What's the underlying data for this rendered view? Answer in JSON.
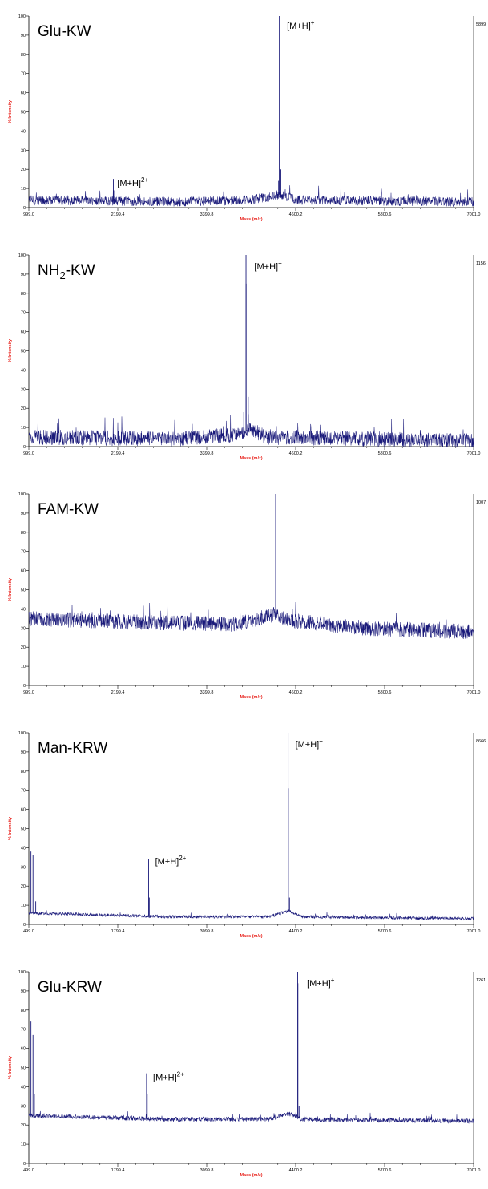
{
  "chart_data": [
    {
      "type": "line",
      "sample_label": "Glu-KW",
      "xlabel": "Mass (m/z)",
      "ylabel": "% Intensity",
      "max_intensity_label": "5899",
      "xlim": [
        999.0,
        7001.0
      ],
      "ylim": [
        0,
        100
      ],
      "x_ticks": [
        "999.0",
        "2199.4",
        "3399.8",
        "4600.2",
        "5800.6",
        "7001.0"
      ],
      "y_ticks": [
        "0",
        "10",
        "20",
        "30",
        "40",
        "50",
        "60",
        "70",
        "80",
        "90",
        "100"
      ],
      "color": "#1a1a7a",
      "baseline": {
        "points": [
          [
            999.0,
            4
          ],
          [
            3000,
            3
          ],
          [
            4000,
            4
          ],
          [
            4400,
            7
          ],
          [
            4600,
            4
          ],
          [
            7001.0,
            3
          ]
        ],
        "noise": 2.5
      },
      "peaks": [
        {
          "x": 2140,
          "y": 15
        },
        {
          "x": 2145,
          "y": 9
        },
        {
          "x": 4380,
          "y": 100
        },
        {
          "x": 4382,
          "y": 45
        },
        {
          "x": 4400,
          "y": 20
        },
        {
          "x": 4370,
          "y": 14
        }
      ],
      "annotations": [
        {
          "x": 2160,
          "y": 16,
          "text": "[M+H]",
          "sup": "2+"
        },
        {
          "x": 4450,
          "y": 98,
          "text": "[M+H]",
          "sup": "+"
        }
      ]
    },
    {
      "type": "line",
      "sample_label": "NH",
      "sample_label_sub": "2",
      "sample_label_suffix": "-KW",
      "xlabel": "Mass (m/z)",
      "ylabel": "% Intensity",
      "max_intensity_label": "1156",
      "xlim": [
        999.0,
        7001.0
      ],
      "ylim": [
        0,
        100
      ],
      "x_ticks": [
        "999.0",
        "2199.4",
        "3399.8",
        "4600.2",
        "5800.6",
        "7001.0"
      ],
      "y_ticks": [
        "0",
        "10",
        "20",
        "30",
        "40",
        "50",
        "60",
        "70",
        "80",
        "90",
        "100"
      ],
      "color": "#1a1a7a",
      "baseline": {
        "points": [
          [
            999.0,
            5
          ],
          [
            3000,
            4
          ],
          [
            3800,
            6
          ],
          [
            4000,
            9
          ],
          [
            4200,
            5
          ],
          [
            7001.0,
            3
          ]
        ],
        "noise": 4
      },
      "peaks": [
        {
          "x": 3930,
          "y": 100
        },
        {
          "x": 3932,
          "y": 85
        },
        {
          "x": 3960,
          "y": 26
        },
        {
          "x": 3900,
          "y": 18
        }
      ],
      "annotations": [
        {
          "x": 4010,
          "y": 97,
          "text": "[M+H]",
          "sup": "+"
        }
      ]
    },
    {
      "type": "line",
      "sample_label": "FAM-KW",
      "xlabel": "Mass (m/z)",
      "ylabel": "% Intensity",
      "max_intensity_label": "1007",
      "xlim": [
        999.0,
        7001.0
      ],
      "ylim": [
        0,
        100
      ],
      "x_ticks": [
        "999.0",
        "2199.4",
        "3399.8",
        "4600.2",
        "5800.6",
        "7001.0"
      ],
      "y_ticks": [
        "0",
        "10",
        "20",
        "30",
        "40",
        "50",
        "60",
        "70",
        "80",
        "90",
        "100"
      ],
      "color": "#1a1a7a",
      "baseline": {
        "points": [
          [
            999.0,
            35
          ],
          [
            2500,
            33
          ],
          [
            3800,
            32
          ],
          [
            4300,
            37
          ],
          [
            4500,
            34
          ],
          [
            5500,
            30
          ],
          [
            7001.0,
            28
          ]
        ],
        "noise": 4
      },
      "peaks": [
        {
          "x": 4330,
          "y": 100
        },
        {
          "x": 4335,
          "y": 46
        }
      ],
      "annotations": []
    },
    {
      "type": "line",
      "sample_label": "Man-KRW",
      "xlabel": "Mass (m/z)",
      "ylabel": "% Intensity",
      "max_intensity_label": "8666",
      "xlim": [
        499.0,
        7001.0
      ],
      "ylim": [
        0,
        100
      ],
      "x_ticks": [
        "499.0",
        "1799.4",
        "3099.8",
        "4400.2",
        "5700.6",
        "7001.0"
      ],
      "y_ticks": [
        "0",
        "10",
        "20",
        "30",
        "40",
        "50",
        "60",
        "70",
        "80",
        "90",
        "100"
      ],
      "color": "#1a1a7a",
      "baseline": {
        "points": [
          [
            499.0,
            6
          ],
          [
            1500,
            5
          ],
          [
            2500,
            4
          ],
          [
            4000,
            4
          ],
          [
            4300,
            7
          ],
          [
            4500,
            4
          ],
          [
            7001.0,
            3
          ]
        ],
        "noise": 0.8
      },
      "peaks": [
        {
          "x": 530,
          "y": 38
        },
        {
          "x": 560,
          "y": 36
        },
        {
          "x": 600,
          "y": 12
        },
        {
          "x": 2250,
          "y": 34
        },
        {
          "x": 2260,
          "y": 14
        },
        {
          "x": 4290,
          "y": 100
        },
        {
          "x": 4293,
          "y": 71
        },
        {
          "x": 4310,
          "y": 14
        }
      ],
      "annotations": [
        {
          "x": 2310,
          "y": 36,
          "text": "[M+H]",
          "sup": "2+"
        },
        {
          "x": 4360,
          "y": 97,
          "text": "[M+H]",
          "sup": "+"
        }
      ]
    },
    {
      "type": "line",
      "sample_label": "Glu-KRW",
      "xlabel": "Mass (m/z)",
      "ylabel": "% Intensity",
      "max_intensity_label": "1261",
      "xlim": [
        499.0,
        7001.0
      ],
      "ylim": [
        0,
        100
      ],
      "x_ticks": [
        "499.0",
        "1799.4",
        "3099.8",
        "4400.2",
        "5700.6",
        "7001.0"
      ],
      "y_ticks": [
        "0",
        "10",
        "20",
        "30",
        "40",
        "50",
        "60",
        "70",
        "80",
        "90",
        "100"
      ],
      "color": "#1a1a7a",
      "baseline": {
        "points": [
          [
            499.0,
            25
          ],
          [
            1500,
            24
          ],
          [
            2500,
            23
          ],
          [
            4000,
            23
          ],
          [
            4300,
            26
          ],
          [
            4500,
            23
          ],
          [
            7001.0,
            22
          ]
        ],
        "noise": 1.2
      },
      "peaks": [
        {
          "x": 530,
          "y": 74
        },
        {
          "x": 560,
          "y": 67
        },
        {
          "x": 580,
          "y": 36
        },
        {
          "x": 2220,
          "y": 47
        },
        {
          "x": 2230,
          "y": 36
        },
        {
          "x": 4430,
          "y": 100
        },
        {
          "x": 4433,
          "y": 94
        },
        {
          "x": 4450,
          "y": 30
        }
      ],
      "annotations": [
        {
          "x": 2280,
          "y": 48,
          "text": "[M+H]",
          "sup": "2+"
        },
        {
          "x": 4530,
          "y": 97,
          "text": "[M+H]",
          "sup": "+"
        }
      ]
    }
  ]
}
